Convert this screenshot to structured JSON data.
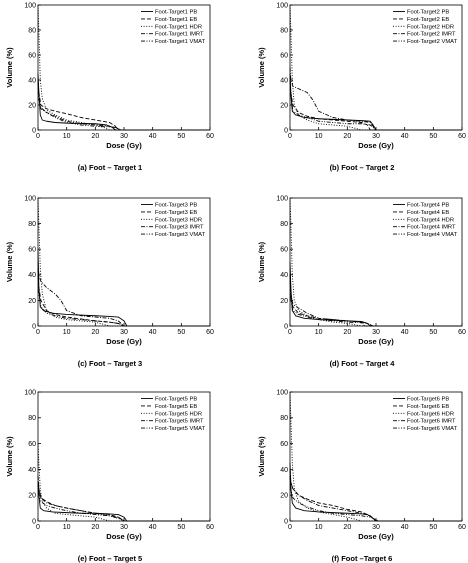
{
  "figure": {
    "panels": [
      {
        "caption": "(a) Foot – Target 1"
      },
      {
        "caption": "(b) Foot – Target 2"
      },
      {
        "caption": "(c) Foot – Target 3"
      },
      {
        "caption": "(d) Foot – Target 4"
      },
      {
        "caption": "(e) Foot – Target 5"
      },
      {
        "caption": "(f) Foot –Target 6"
      }
    ]
  },
  "chart_data": [
    {
      "type": "line",
      "title": "",
      "xlabel": "Dose (Gy)",
      "ylabel": "Volume (%)",
      "xlim": [
        0,
        60
      ],
      "ylim": [
        0,
        100
      ],
      "xticks": [
        0,
        10,
        20,
        30,
        40,
        50,
        60
      ],
      "yticks": [
        0,
        20,
        40,
        60,
        80,
        100
      ],
      "legend": "top-right",
      "series": [
        {
          "name": "Foot-Target1 PB",
          "style": "solid",
          "x": [
            0,
            0.3,
            0.8,
            1.5,
            3,
            6,
            10,
            20,
            24,
            26,
            27,
            60
          ],
          "y": [
            45,
            30,
            12,
            8,
            7,
            6,
            5.5,
            5,
            4,
            2,
            0,
            0
          ]
        },
        {
          "name": "Foot-Target1 EB",
          "style": "dashed",
          "x": [
            0,
            0.3,
            1,
            3,
            6,
            10,
            15,
            20,
            25,
            27,
            28,
            60
          ],
          "y": [
            40,
            30,
            20,
            17,
            15,
            13,
            10,
            8,
            6,
            3,
            0,
            0
          ]
        },
        {
          "name": "Foot-Target1 HDR",
          "style": "dotted",
          "x": [
            0,
            0.3,
            0.8,
            1.5,
            3,
            6,
            10,
            15,
            20,
            23,
            25,
            60
          ],
          "y": [
            100,
            80,
            40,
            25,
            16,
            12,
            8,
            6,
            4,
            2,
            0,
            0
          ]
        },
        {
          "name": "Foot-Target1 IMRT",
          "style": "dashdot",
          "x": [
            0,
            0.3,
            1,
            3,
            6,
            10,
            15,
            20,
            25,
            27,
            29,
            60
          ],
          "y": [
            38,
            25,
            17,
            14,
            11,
            7,
            5,
            4,
            3,
            2,
            0,
            0
          ]
        },
        {
          "name": "Foot-Target1 VMAT",
          "style": "dashdotdot",
          "x": [
            0,
            0.3,
            1,
            3,
            6,
            10,
            15,
            20,
            25,
            27,
            29,
            60
          ],
          "y": [
            42,
            28,
            18,
            14,
            10,
            6,
            4,
            3,
            2.5,
            2,
            0,
            0
          ]
        }
      ]
    },
    {
      "type": "line",
      "title": "",
      "xlabel": "Dose (Gy)",
      "ylabel": "Volume (%)",
      "xlim": [
        0,
        60
      ],
      "ylim": [
        0,
        100
      ],
      "xticks": [
        0,
        10,
        20,
        30,
        40,
        50,
        60
      ],
      "yticks": [
        0,
        20,
        40,
        60,
        80,
        100
      ],
      "legend": "top-right",
      "series": [
        {
          "name": "Foot-Target2 PB",
          "style": "solid",
          "x": [
            0,
            0.3,
            0.8,
            2,
            5,
            10,
            15,
            20,
            25,
            28,
            29,
            30,
            60
          ],
          "y": [
            45,
            28,
            15,
            12,
            10,
            9,
            8.5,
            8,
            7.5,
            7,
            4,
            0,
            0
          ]
        },
        {
          "name": "Foot-Target2 EB",
          "style": "dashed",
          "x": [
            0,
            0.3,
            1,
            3,
            6,
            10,
            15,
            20,
            25,
            27,
            28,
            60
          ],
          "y": [
            40,
            30,
            20,
            14,
            11,
            9,
            8,
            7,
            6,
            4,
            0,
            0
          ]
        },
        {
          "name": "Foot-Target2 HDR",
          "style": "dotted",
          "x": [
            0,
            0.3,
            0.8,
            1.5,
            3,
            6,
            10,
            15,
            20,
            25,
            60
          ],
          "y": [
            100,
            80,
            40,
            20,
            12,
            8,
            5,
            4,
            3,
            0,
            0
          ]
        },
        {
          "name": "Foot-Target2 IMRT",
          "style": "dashdot",
          "x": [
            0,
            0.3,
            1,
            3,
            6,
            8,
            10,
            15,
            20,
            25,
            28,
            30,
            60
          ],
          "y": [
            50,
            40,
            35,
            33,
            30,
            24,
            15,
            10,
            8,
            7,
            6,
            0,
            0
          ]
        },
        {
          "name": "Foot-Target2 VMAT",
          "style": "dashdotdot",
          "x": [
            0,
            0.3,
            1,
            3,
            6,
            10,
            15,
            20,
            25,
            28,
            30,
            60
          ],
          "y": [
            45,
            30,
            15,
            12,
            10,
            7,
            6,
            5,
            5,
            4,
            0,
            0
          ]
        }
      ]
    },
    {
      "type": "line",
      "title": "",
      "xlabel": "Dose (Gy)",
      "ylabel": "Volume (%)",
      "xlim": [
        0,
        60
      ],
      "ylim": [
        0,
        100
      ],
      "xticks": [
        0,
        10,
        20,
        30,
        40,
        50,
        60
      ],
      "yticks": [
        0,
        20,
        40,
        60,
        80,
        100
      ],
      "legend": "top-right",
      "series": [
        {
          "name": "Foot-Target3 PB",
          "style": "solid",
          "x": [
            0,
            0.3,
            0.8,
            2,
            5,
            10,
            15,
            20,
            25,
            28,
            30,
            31,
            60
          ],
          "y": [
            60,
            30,
            15,
            12,
            10,
            9,
            8.5,
            8,
            7.5,
            7,
            4,
            0,
            0
          ]
        },
        {
          "name": "Foot-Target3 EB",
          "style": "dashed",
          "x": [
            0,
            0.3,
            1,
            3,
            6,
            10,
            15,
            20,
            25,
            28,
            30,
            60
          ],
          "y": [
            40,
            30,
            20,
            12,
            9,
            7,
            5.5,
            4,
            3,
            2,
            0,
            0
          ]
        },
        {
          "name": "Foot-Target3 HDR",
          "style": "dotted",
          "x": [
            0,
            0.3,
            0.8,
            1.5,
            3,
            6,
            10,
            15,
            20,
            25,
            60
          ],
          "y": [
            100,
            80,
            45,
            25,
            12,
            7,
            5,
            4,
            3,
            0,
            0
          ]
        },
        {
          "name": "Foot-Target3 IMRT",
          "style": "dashdot",
          "x": [
            0,
            0.3,
            1,
            3,
            6,
            8,
            10,
            15,
            20,
            25,
            28,
            30,
            60
          ],
          "y": [
            50,
            40,
            35,
            30,
            25,
            20,
            12,
            8,
            7,
            6,
            4,
            0,
            0
          ]
        },
        {
          "name": "Foot-Target3 VMAT",
          "style": "dashdotdot",
          "x": [
            0,
            0.3,
            1,
            3,
            6,
            10,
            15,
            20,
            25,
            28,
            30,
            60
          ],
          "y": [
            45,
            25,
            15,
            10,
            8,
            6,
            5,
            4,
            3,
            2,
            0,
            0
          ]
        }
      ]
    },
    {
      "type": "line",
      "title": "",
      "xlabel": "Dose (Gy)",
      "ylabel": "Volume (%)",
      "xlim": [
        0,
        60
      ],
      "ylim": [
        0,
        100
      ],
      "xticks": [
        0,
        10,
        20,
        30,
        40,
        50,
        60
      ],
      "yticks": [
        0,
        20,
        40,
        60,
        80,
        100
      ],
      "legend": "top-right",
      "series": [
        {
          "name": "Foot-Target4 PB",
          "style": "solid",
          "x": [
            0,
            0.3,
            0.8,
            2,
            5,
            10,
            15,
            20,
            25,
            27,
            28,
            60
          ],
          "y": [
            50,
            30,
            12,
            8,
            6,
            5,
            4.5,
            4,
            3.5,
            2,
            0,
            0
          ]
        },
        {
          "name": "Foot-Target4 EB",
          "style": "dashed",
          "x": [
            0,
            0.3,
            1,
            3,
            6,
            10,
            15,
            20,
            25,
            26,
            60
          ],
          "y": [
            40,
            25,
            15,
            10,
            8,
            6,
            5,
            4,
            3,
            0,
            0
          ]
        },
        {
          "name": "Foot-Target4 HDR",
          "style": "dotted",
          "x": [
            0,
            0.3,
            0.8,
            1.5,
            3,
            6,
            10,
            15,
            20,
            25,
            60
          ],
          "y": [
            100,
            80,
            40,
            20,
            12,
            8,
            5,
            3,
            2,
            0,
            0
          ]
        },
        {
          "name": "Foot-Target4 IMRT",
          "style": "dashdot",
          "x": [
            0,
            0.3,
            1,
            3,
            6,
            10,
            15,
            20,
            25,
            27,
            29,
            60
          ],
          "y": [
            45,
            25,
            17,
            14,
            10,
            6,
            5,
            4,
            3.5,
            2,
            0,
            0
          ]
        },
        {
          "name": "Foot-Target4 VMAT",
          "style": "dashdotdot",
          "x": [
            0,
            0.3,
            1,
            3,
            6,
            10,
            15,
            20,
            25,
            27,
            29,
            60
          ],
          "y": [
            40,
            20,
            12,
            9,
            7,
            5,
            4,
            3,
            2.5,
            2,
            0,
            0
          ]
        }
      ]
    },
    {
      "type": "line",
      "title": "",
      "xlabel": "Dose (Gy)",
      "ylabel": "Volume (%)",
      "xlim": [
        0,
        60
      ],
      "ylim": [
        0,
        100
      ],
      "xticks": [
        0,
        10,
        20,
        30,
        40,
        50,
        60
      ],
      "yticks": [
        0,
        20,
        40,
        60,
        80,
        100
      ],
      "legend": "top-right",
      "series": [
        {
          "name": "Foot-Target5 PB",
          "style": "solid",
          "x": [
            0,
            0.3,
            0.8,
            2,
            5,
            10,
            15,
            20,
            25,
            28,
            30,
            31,
            60
          ],
          "y": [
            30,
            20,
            10,
            8,
            7,
            6.5,
            6,
            6,
            5.5,
            5,
            3,
            0,
            0
          ]
        },
        {
          "name": "Foot-Target5 EB",
          "style": "dashed",
          "x": [
            0,
            0.3,
            1,
            3,
            6,
            10,
            15,
            20,
            25,
            28,
            30,
            60
          ],
          "y": [
            35,
            25,
            18,
            15,
            12,
            10,
            8,
            6,
            5,
            3,
            0,
            0
          ]
        },
        {
          "name": "Foot-Target5 HDR",
          "style": "dotted",
          "x": [
            0,
            0.3,
            0.8,
            1.5,
            3,
            6,
            10,
            15,
            20,
            25,
            60
          ],
          "y": [
            60,
            45,
            25,
            15,
            10,
            6,
            5,
            4,
            3,
            0,
            0
          ]
        },
        {
          "name": "Foot-Target5 IMRT",
          "style": "dashdot",
          "x": [
            0,
            0.3,
            1,
            3,
            6,
            10,
            15,
            20,
            25,
            28,
            30,
            60
          ],
          "y": [
            35,
            25,
            18,
            14,
            12,
            10,
            8,
            6,
            4,
            3,
            0,
            0
          ]
        },
        {
          "name": "Foot-Target5 VMAT",
          "style": "dashdotdot",
          "x": [
            0,
            0.3,
            1,
            3,
            6,
            10,
            15,
            20,
            25,
            28,
            30,
            60
          ],
          "y": [
            30,
            20,
            15,
            12,
            10,
            8,
            6,
            5,
            4,
            2,
            0,
            0
          ]
        }
      ]
    },
    {
      "type": "line",
      "title": "",
      "xlabel": "Dose (Gy)",
      "ylabel": "Volume (%)",
      "xlim": [
        0,
        60
      ],
      "ylim": [
        0,
        100
      ],
      "xticks": [
        0,
        10,
        20,
        30,
        40,
        50,
        60
      ],
      "yticks": [
        0,
        20,
        40,
        60,
        80,
        100
      ],
      "legend": "top-right",
      "series": [
        {
          "name": "Foot-Target6 PB",
          "style": "solid",
          "x": [
            0,
            0.3,
            0.8,
            2,
            5,
            10,
            15,
            20,
            25,
            27,
            29,
            30,
            60
          ],
          "y": [
            45,
            25,
            14,
            10,
            8,
            7,
            6.5,
            6,
            5.5,
            5,
            2,
            0,
            0
          ]
        },
        {
          "name": "Foot-Target6 EB",
          "style": "dashed",
          "x": [
            0,
            0.3,
            1,
            3,
            6,
            10,
            15,
            20,
            25,
            28,
            30,
            60
          ],
          "y": [
            40,
            30,
            25,
            20,
            17,
            14,
            12,
            9,
            7,
            4,
            0,
            0
          ]
        },
        {
          "name": "Foot-Target6 HDR",
          "style": "dotted",
          "x": [
            0,
            0.3,
            0.8,
            1.5,
            3,
            6,
            10,
            15,
            20,
            25,
            60
          ],
          "y": [
            100,
            80,
            45,
            25,
            15,
            10,
            7,
            5,
            3,
            0,
            0
          ]
        },
        {
          "name": "Foot-Target6 IMRT",
          "style": "dashdot",
          "x": [
            0,
            0.3,
            1,
            3,
            6,
            10,
            15,
            20,
            25,
            28,
            30,
            60
          ],
          "y": [
            40,
            30,
            25,
            20,
            16,
            12,
            10,
            8,
            6,
            4,
            0,
            0
          ]
        },
        {
          "name": "Foot-Target6 VMAT",
          "style": "dashdotdot",
          "x": [
            0,
            0.3,
            1,
            3,
            6,
            10,
            15,
            20,
            25,
            28,
            31,
            60
          ],
          "y": [
            35,
            25,
            18,
            14,
            11,
            8,
            6,
            5,
            4,
            3,
            0,
            0
          ]
        }
      ]
    }
  ]
}
